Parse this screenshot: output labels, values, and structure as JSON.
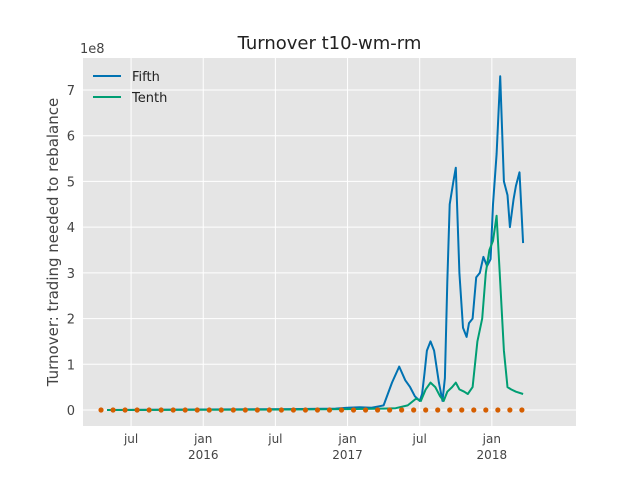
{
  "chart_data": {
    "type": "line",
    "title": "Turnover t10-wm-rm",
    "xlabel": "",
    "ylabel": "Turnover: trading needed to rebalance",
    "y_multiplier_label": "1e8",
    "ylim": [
      -0.35,
      7.7
    ],
    "y_ticks": [
      0,
      1,
      2,
      3,
      4,
      5,
      6,
      7
    ],
    "x_domain": [
      0,
      41
    ],
    "x_ticks": [
      {
        "x": 4,
        "label": "jul",
        "sublabel": ""
      },
      {
        "x": 10,
        "label": "jan",
        "sublabel": "2016"
      },
      {
        "x": 16,
        "label": "jul",
        "sublabel": ""
      },
      {
        "x": 22,
        "label": "jan",
        "sublabel": "2017"
      },
      {
        "x": 28,
        "label": "jul",
        "sublabel": ""
      },
      {
        "x": 34,
        "label": "jan",
        "sublabel": "2018"
      }
    ],
    "grid": true,
    "legend_position": "top-left",
    "series": [
      {
        "name": "Fifth",
        "color": "#0072b2",
        "points": [
          [
            2,
            0
          ],
          [
            10,
            0.01
          ],
          [
            17,
            0.02
          ],
          [
            21,
            0.03
          ],
          [
            22,
            0.05
          ],
          [
            23,
            0.06
          ],
          [
            24,
            0.05
          ],
          [
            25,
            0.1
          ],
          [
            25.7,
            0.6
          ],
          [
            26.3,
            0.95
          ],
          [
            26.8,
            0.65
          ],
          [
            27.2,
            0.5
          ],
          [
            27.6,
            0.3
          ],
          [
            28,
            0.2
          ],
          [
            28.2,
            0.35
          ],
          [
            28.4,
            0.8
          ],
          [
            28.6,
            1.3
          ],
          [
            28.9,
            1.5
          ],
          [
            29.2,
            1.3
          ],
          [
            29.6,
            0.6
          ],
          [
            29.9,
            0.2
          ],
          [
            30.1,
            0.7
          ],
          [
            30.3,
            2.8
          ],
          [
            30.5,
            4.5
          ],
          [
            30.8,
            5.0
          ],
          [
            31,
            5.3
          ],
          [
            31.3,
            3.0
          ],
          [
            31.6,
            1.8
          ],
          [
            31.9,
            1.6
          ],
          [
            32.1,
            1.9
          ],
          [
            32.4,
            2.0
          ],
          [
            32.7,
            2.9
          ],
          [
            33,
            3.0
          ],
          [
            33.3,
            3.35
          ],
          [
            33.6,
            3.15
          ],
          [
            33.9,
            3.3
          ],
          [
            34.1,
            4.5
          ],
          [
            34.4,
            5.6
          ],
          [
            34.7,
            7.3
          ],
          [
            35,
            5.0
          ],
          [
            35.3,
            4.7
          ],
          [
            35.5,
            4.0
          ],
          [
            35.8,
            4.6
          ],
          [
            36,
            4.9
          ],
          [
            36.3,
            5.2
          ],
          [
            36.6,
            3.65
          ]
        ]
      },
      {
        "name": "Tenth",
        "color": "#009e73",
        "points": [
          [
            2,
            0
          ],
          [
            10,
            0.005
          ],
          [
            17,
            0.01
          ],
          [
            22,
            0.02
          ],
          [
            25,
            0.03
          ],
          [
            26,
            0.04
          ],
          [
            27,
            0.1
          ],
          [
            27.7,
            0.25
          ],
          [
            28.1,
            0.2
          ],
          [
            28.5,
            0.45
          ],
          [
            28.9,
            0.6
          ],
          [
            29.3,
            0.5
          ],
          [
            29.7,
            0.3
          ],
          [
            30,
            0.2
          ],
          [
            30.3,
            0.4
          ],
          [
            30.7,
            0.5
          ],
          [
            31,
            0.6
          ],
          [
            31.3,
            0.45
          ],
          [
            31.7,
            0.4
          ],
          [
            32,
            0.35
          ],
          [
            32.4,
            0.5
          ],
          [
            32.8,
            1.5
          ],
          [
            33.2,
            2.0
          ],
          [
            33.5,
            3.0
          ],
          [
            33.8,
            3.5
          ],
          [
            34.1,
            3.7
          ],
          [
            34.4,
            4.25
          ],
          [
            34.7,
            2.8
          ],
          [
            35,
            1.3
          ],
          [
            35.3,
            0.5
          ],
          [
            35.6,
            0.45
          ],
          [
            36,
            0.4
          ],
          [
            36.6,
            0.35
          ]
        ]
      }
    ],
    "scatter": {
      "name": "",
      "color": "#d55e00",
      "x_start": 1.5,
      "x_step": 1,
      "count": 36,
      "value": 0
    }
  }
}
